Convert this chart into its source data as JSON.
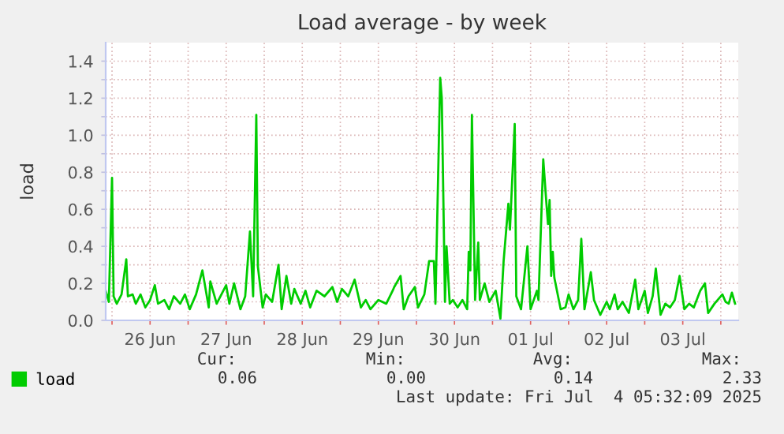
{
  "chart_data": {
    "type": "line",
    "title": "Load average - by week",
    "ylabel": "load",
    "x": [
      "2025-06-25T22:00",
      "2025-06-25T23:00",
      "2025-06-26T00:00",
      "2025-06-26T00:30",
      "2025-06-26T01:30",
      "2025-06-26T03:00",
      "2025-06-26T04:30",
      "2025-06-26T05:00",
      "2025-06-26T06:30",
      "2025-06-26T07:30",
      "2025-06-26T09:00",
      "2025-06-26T10:30",
      "2025-06-26T12:00",
      "2025-06-26T13:30",
      "2025-06-26T14:30",
      "2025-06-26T16:30",
      "2025-06-26T18:00",
      "2025-06-26T19:30",
      "2025-06-26T21:30",
      "2025-06-26T23:00",
      "2025-06-27T00:30",
      "2025-06-27T02:30",
      "2025-06-27T04:30",
      "2025-06-27T06:30",
      "2025-06-27T07:00",
      "2025-06-27T09:00",
      "2025-06-27T10:30",
      "2025-06-27T12:00",
      "2025-06-27T13:00",
      "2025-06-27T14:30",
      "2025-06-27T16:30",
      "2025-06-27T18:00",
      "2025-06-27T19:30",
      "2025-06-27T20:30",
      "2025-06-27T21:30",
      "2025-06-27T22:00",
      "2025-06-27T23:30",
      "2025-06-28T00:30",
      "2025-06-28T02:30",
      "2025-06-28T04:30",
      "2025-06-28T05:30",
      "2025-06-28T07:00",
      "2025-06-28T08:30",
      "2025-06-28T09:30",
      "2025-06-28T11:30",
      "2025-06-28T13:00",
      "2025-06-28T14:30",
      "2025-06-28T16:30",
      "2025-06-28T19:00",
      "2025-06-28T21:30",
      "2025-06-28T23:00",
      "2025-06-29T00:30",
      "2025-06-29T02:30",
      "2025-06-29T04:30",
      "2025-06-29T06:30",
      "2025-06-29T08:00",
      "2025-06-29T09:30",
      "2025-06-29T12:00",
      "2025-06-29T14:30",
      "2025-06-29T16:30",
      "2025-06-29T17:00",
      "2025-06-29T19:00",
      "2025-06-29T20:00",
      "2025-06-29T21:30",
      "2025-06-29T23:30",
      "2025-06-30T00:30",
      "2025-06-30T02:30",
      "2025-06-30T04:00",
      "2025-06-30T05:30",
      "2025-06-30T06:00",
      "2025-06-30T07:30",
      "2025-06-30T08:00",
      "2025-06-30T09:00",
      "2025-06-30T09:30",
      "2025-06-30T10:30",
      "2025-06-30T11:30",
      "2025-06-30T13:00",
      "2025-06-30T14:30",
      "2025-06-30T16:00",
      "2025-06-30T16:30",
      "2025-06-30T17:00",
      "2025-06-30T17:30",
      "2025-06-30T18:30",
      "2025-06-30T19:30",
      "2025-06-30T20:00",
      "2025-06-30T21:30",
      "2025-06-30T23:00",
      "2025-07-01T01:00",
      "2025-07-01T02:30",
      "2025-07-01T03:30",
      "2025-07-01T05:00",
      "2025-07-01T05:30",
      "2025-07-01T07:00",
      "2025-07-01T07:30",
      "2025-07-01T09:00",
      "2025-07-01T11:00",
      "2025-07-01T12:00",
      "2025-07-01T14:00",
      "2025-07-01T14:30",
      "2025-07-01T16:00",
      "2025-07-01T17:00",
      "2025-07-01T17:30",
      "2025-07-01T18:00",
      "2025-07-01T18:30",
      "2025-07-01T19:00",
      "2025-07-01T19:30",
      "2025-07-01T21:30",
      "2025-07-01T23:00",
      "2025-07-02T00:00",
      "2025-07-02T01:30",
      "2025-07-02T03:00",
      "2025-07-02T04:00",
      "2025-07-02T05:00",
      "2025-07-02T07:00",
      "2025-07-02T08:00",
      "2025-07-02T10:00",
      "2025-07-02T12:00",
      "2025-07-02T13:00",
      "2025-07-02T14:30",
      "2025-07-02T15:30",
      "2025-07-02T17:00",
      "2025-07-02T19:00",
      "2025-07-02T21:00",
      "2025-07-02T22:00",
      "2025-07-03T00:00",
      "2025-07-03T01:00",
      "2025-07-03T02:30",
      "2025-07-03T03:30",
      "2025-07-03T05:00",
      "2025-07-03T06:30",
      "2025-07-03T08:00",
      "2025-07-03T09:30",
      "2025-07-03T11:00",
      "2025-07-03T12:30",
      "2025-07-03T14:00",
      "2025-07-03T15:30",
      "2025-07-03T17:30",
      "2025-07-03T19:00",
      "2025-07-03T20:00",
      "2025-07-03T22:00",
      "2025-07-04T00:30",
      "2025-07-04T01:30",
      "2025-07-04T02:30",
      "2025-07-04T03:30",
      "2025-07-04T04:30"
    ],
    "series": [
      {
        "name": "load",
        "color": "#00cc00",
        "values": [
          0.16,
          0.1,
          0.77,
          0.13,
          0.09,
          0.14,
          0.33,
          0.13,
          0.14,
          0.09,
          0.14,
          0.07,
          0.11,
          0.19,
          0.09,
          0.11,
          0.06,
          0.13,
          0.09,
          0.14,
          0.06,
          0.14,
          0.27,
          0.07,
          0.21,
          0.09,
          0.14,
          0.19,
          0.09,
          0.2,
          0.06,
          0.13,
          0.48,
          0.13,
          1.11,
          0.29,
          0.07,
          0.14,
          0.1,
          0.3,
          0.06,
          0.24,
          0.09,
          0.17,
          0.09,
          0.16,
          0.07,
          0.16,
          0.13,
          0.18,
          0.1,
          0.17,
          0.13,
          0.22,
          0.07,
          0.11,
          0.06,
          0.11,
          0.09,
          0.16,
          0.18,
          0.24,
          0.06,
          0.13,
          0.18,
          0.07,
          0.14,
          0.32,
          0.32,
          0.09,
          1.31,
          1.2,
          0.1,
          0.4,
          0.09,
          0.11,
          0.07,
          0.11,
          0.06,
          0.37,
          0.27,
          1.11,
          0.11,
          0.42,
          0.11,
          0.2,
          0.1,
          0.16,
          0.01,
          0.32,
          0.63,
          0.49,
          1.06,
          0.13,
          0.06,
          0.4,
          0.06,
          0.16,
          0.11,
          0.87,
          0.63,
          0.52,
          0.65,
          0.24,
          0.37,
          0.23,
          0.06,
          0.07,
          0.14,
          0.06,
          0.11,
          0.44,
          0.06,
          0.26,
          0.11,
          0.03,
          0.1,
          0.06,
          0.14,
          0.06,
          0.1,
          0.04,
          0.22,
          0.06,
          0.16,
          0.04,
          0.13,
          0.28,
          0.03,
          0.09,
          0.07,
          0.11,
          0.24,
          0.06,
          0.09,
          0.07,
          0.16,
          0.2,
          0.04,
          0.09,
          0.14,
          0.1,
          0.09,
          0.15,
          0.09
        ]
      }
    ],
    "xlim": [
      "2025-06-25T22:00",
      "2025-07-04T05:30"
    ],
    "xticks": [
      {
        "value": "2025-06-26T00:00",
        "label": null
      },
      {
        "value": "2025-06-26T12:00",
        "label": "26 Jun"
      },
      {
        "value": "2025-06-27T00:00",
        "label": null
      },
      {
        "value": "2025-06-27T12:00",
        "label": "27 Jun"
      },
      {
        "value": "2025-06-28T00:00",
        "label": null
      },
      {
        "value": "2025-06-28T12:00",
        "label": "28 Jun"
      },
      {
        "value": "2025-06-29T00:00",
        "label": null
      },
      {
        "value": "2025-06-29T12:00",
        "label": "29 Jun"
      },
      {
        "value": "2025-06-30T00:00",
        "label": null
      },
      {
        "value": "2025-06-30T12:00",
        "label": "30 Jun"
      },
      {
        "value": "2025-07-01T00:00",
        "label": null
      },
      {
        "value": "2025-07-01T12:00",
        "label": "01 Jul"
      },
      {
        "value": "2025-07-02T00:00",
        "label": null
      },
      {
        "value": "2025-07-02T12:00",
        "label": "02 Jul"
      },
      {
        "value": "2025-07-03T00:00",
        "label": null
      },
      {
        "value": "2025-07-03T12:00",
        "label": "03 Jul"
      },
      {
        "value": "2025-07-04T00:00",
        "label": null
      }
    ],
    "ylim": [
      0,
      1.5
    ],
    "yticks": [
      {
        "value": 0,
        "label": "0.0"
      },
      {
        "value": 0.1,
        "label": null
      },
      {
        "value": 0.2,
        "label": "0.2"
      },
      {
        "value": 0.3,
        "label": null
      },
      {
        "value": 0.4,
        "label": "0.4"
      },
      {
        "value": 0.5,
        "label": null
      },
      {
        "value": 0.6,
        "label": "0.6"
      },
      {
        "value": 0.7,
        "label": null
      },
      {
        "value": 0.8,
        "label": "0.8"
      },
      {
        "value": 0.9,
        "label": null
      },
      {
        "value": 1.0,
        "label": "1.0"
      },
      {
        "value": 1.1,
        "label": null
      },
      {
        "value": 1.2,
        "label": "1.2"
      },
      {
        "value": 1.3,
        "label": null
      },
      {
        "value": 1.4,
        "label": "1.4"
      }
    ],
    "grid": true,
    "legend": "bottom left",
    "line_style": "solid",
    "marker": "none",
    "annotations": [
      "Cur:",
      "Min:",
      "Avg:",
      "Max:",
      "0.06",
      "0.00",
      "0.14",
      "2.33",
      "Last update: Fri Jul  4 05:32:09 2025"
    ]
  }
}
